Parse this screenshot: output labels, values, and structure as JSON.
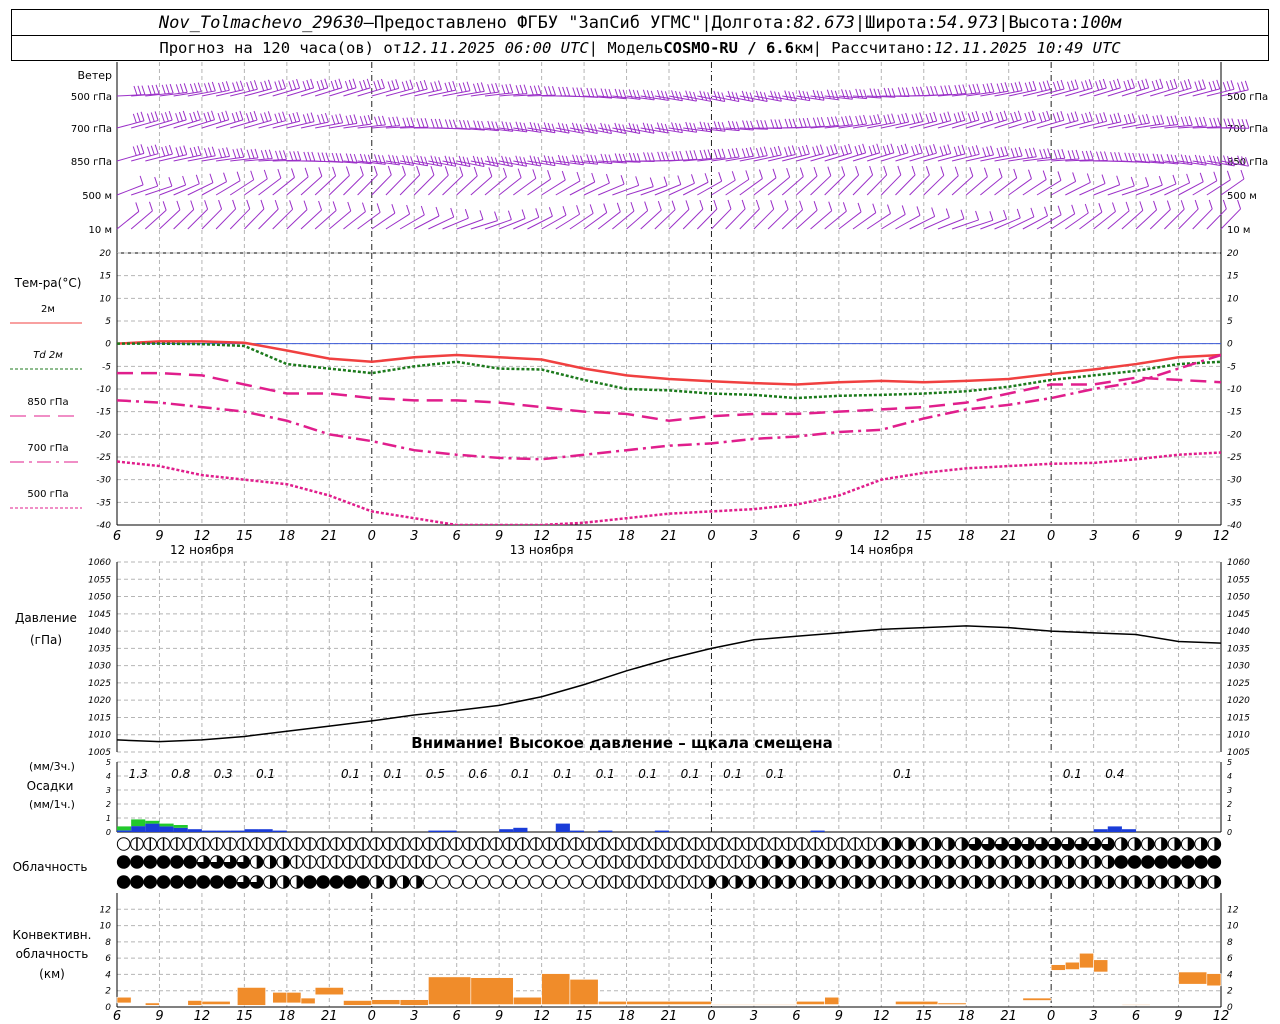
{
  "header": {
    "line1": {
      "station": "Nov_Tolmachevo_29630",
      "sep1": " – ",
      "provider": "Предоставлено ФГБУ \"ЗапСиб УГМС\"",
      "sep2": " | ",
      "lon_label": "Долгота: ",
      "lon_value": "82.673",
      "sep3": " | ",
      "lat_label": "Широта: ",
      "lat_value": "54.973",
      "sep4": " | ",
      "alt_label": "Высота: ",
      "alt_value": "100м"
    },
    "line2": {
      "forecast_label": "Прогноз на 120 часа(ов) от ",
      "forecast_time": "12.11.2025 06:00 UTC",
      "model_label": "  | Модель ",
      "model_name": "COSMO-RU / 6.6",
      "model_unit": "км",
      "calc_label": " | Рассчитано: ",
      "calc_time": "12.11.2025 10:49 UTC"
    }
  },
  "chart_data": [
    {
      "type": "wind-barbs",
      "title": "Ветер",
      "levels": [
        "500 гПа",
        "700 гПа",
        "850 гПа",
        "500 м",
        "10  м"
      ],
      "color": "#9b30c8",
      "x_ticks": [
        "6",
        "9",
        "12",
        "15",
        "18",
        "21",
        "0",
        "3",
        "6",
        "9",
        "12",
        "15",
        "18",
        "21",
        "0",
        "3",
        "6",
        "9",
        "12",
        "15",
        "18",
        "21",
        "0",
        "3",
        "6",
        "9",
        "12"
      ]
    },
    {
      "type": "line",
      "ylabel": "Тем-ра(°C)",
      "ylim": [
        -40,
        20
      ],
      "yticks": [
        20,
        15,
        10,
        5,
        0,
        -5,
        -10,
        -15,
        -20,
        -25,
        -30,
        -35,
        -40
      ],
      "x_ticks": [
        "6",
        "9",
        "12",
        "15",
        "18",
        "21",
        "0",
        "3",
        "6",
        "9",
        "12",
        "15",
        "18",
        "21",
        "0",
        "3",
        "6",
        "9",
        "12",
        "15",
        "18",
        "21",
        "0",
        "3",
        "6",
        "9",
        "12"
      ],
      "day_labels": [
        "12 ноября",
        "13 ноября",
        "14 ноября"
      ],
      "hours": [
        0,
        3,
        6,
        9,
        12,
        15,
        18,
        21,
        24,
        27,
        30,
        33,
        36,
        39,
        42,
        45,
        48,
        51,
        54,
        57,
        60,
        63,
        66,
        69,
        72,
        75,
        78
      ],
      "series": [
        {
          "name": "2м",
          "color": "#f04040",
          "dash": "solid",
          "values": [
            0,
            0.5,
            0.5,
            0.2,
            -1.5,
            -3.3,
            -4,
            -3,
            -2.5,
            -3,
            -3.5,
            -5.5,
            -7,
            -7.8,
            -8.3,
            -8.7,
            -9,
            -8.5,
            -8.2,
            -8.5,
            -8.2,
            -7.8,
            -6.7,
            -5.7,
            -4.5,
            -3,
            -2.5
          ]
        },
        {
          "name": "Td  2м",
          "color": "#1c7a1c",
          "dash": "dotted",
          "values": [
            0,
            0,
            -0.1,
            -0.5,
            -4.5,
            -5.5,
            -6.5,
            -5,
            -4,
            -5.5,
            -5.7,
            -8,
            -10,
            -10.3,
            -11,
            -11.3,
            -12,
            -11.5,
            -11.3,
            -11,
            -10.5,
            -9.5,
            -8,
            -7,
            -6,
            -4.5,
            -4
          ]
        },
        {
          "name": "850 гПа",
          "color": "#e01e8c",
          "dash": "long-dash",
          "values": [
            -6.5,
            -6.5,
            -7,
            -9,
            -11,
            -11,
            -12,
            -12.5,
            -12.5,
            -13,
            -14,
            -15,
            -15.5,
            -17,
            -16,
            -15.5,
            -15.5,
            -15,
            -14.5,
            -14,
            -13,
            -11,
            -9,
            -9,
            -7.5,
            -8,
            -8.5
          ]
        },
        {
          "name": "700 гПа",
          "color": "#e01e8c",
          "dash": "dash-dot",
          "values": [
            -12.5,
            -13,
            -14,
            -15,
            -17,
            -20,
            -21.5,
            -23.5,
            -24.5,
            -25.2,
            -25.5,
            -24.5,
            -23.5,
            -22.5,
            -22,
            -21,
            -20.5,
            -19.5,
            -19,
            -16.5,
            -14.5,
            -13.5,
            -12,
            -10,
            -8.5,
            -5.5,
            -2.5
          ]
        },
        {
          "name": "500 гПа",
          "color": "#e01e8c",
          "dash": "dotted",
          "values": [
            -26,
            -27,
            -29,
            -30,
            -31,
            -33.5,
            -37,
            -38.5,
            -40.5,
            -42,
            -41,
            -39.5,
            -38.5,
            -37.5,
            -37,
            -36.5,
            -35.5,
            -33.5,
            -30,
            -28.5,
            -27.5,
            -27,
            -26.5,
            -26.3,
            -25.5,
            -24.5,
            -24
          ]
        }
      ]
    },
    {
      "type": "line",
      "ylabel": "Давление",
      "yunit": "(гПа)",
      "ylim": [
        1005,
        1060
      ],
      "yticks": [
        1060,
        1055,
        1050,
        1045,
        1040,
        1035,
        1030,
        1025,
        1020,
        1015,
        1010,
        1005
      ],
      "notice": "Внимание! Высокое давление – щкала смещена",
      "hours": [
        0,
        3,
        6,
        9,
        12,
        15,
        18,
        21,
        24,
        27,
        30,
        33,
        36,
        39,
        42,
        45,
        48,
        51,
        54,
        57,
        60,
        63,
        66,
        69,
        72,
        75,
        78
      ],
      "series": [
        {
          "name": "Давление",
          "color": "#000000",
          "values": [
            1008.5,
            1008,
            1008.5,
            1009.5,
            1011,
            1012.5,
            1014,
            1015.7,
            1017,
            1018.5,
            1021,
            1024.5,
            1028.5,
            1032,
            1035,
            1037.5,
            1038.5,
            1039.5,
            1040.5,
            1041,
            1041.5,
            1041,
            1040,
            1039.5,
            1039,
            1037,
            1036.5
          ]
        }
      ]
    },
    {
      "type": "bar",
      "ylabel": "Осадки",
      "yunit_3h": "(мм/3ч.)",
      "yunit_1h": "(мм/1ч.)",
      "ylim": [
        0,
        5
      ],
      "yticks": [
        5,
        4,
        3,
        2,
        1,
        0
      ],
      "totals_3h": [
        {
          "hour": 1.5,
          "label": "1.3"
        },
        {
          "hour": 4.5,
          "label": "0.8"
        },
        {
          "hour": 7.5,
          "label": "0.3"
        },
        {
          "hour": 10.5,
          "label": "0.1"
        },
        {
          "hour": 16.5,
          "label": "0.1"
        },
        {
          "hour": 19.5,
          "label": "0.1"
        },
        {
          "hour": 22.5,
          "label": "0.5"
        },
        {
          "hour": 25.5,
          "label": "0.6"
        },
        {
          "hour": 28.5,
          "label": "0.1"
        },
        {
          "hour": 31.5,
          "label": "0.1"
        },
        {
          "hour": 34.5,
          "label": "0.1"
        },
        {
          "hour": 37.5,
          "label": "0.1"
        },
        {
          "hour": 40.5,
          "label": "0.1"
        },
        {
          "hour": 43.5,
          "label": "0.1"
        },
        {
          "hour": 46.5,
          "label": "0.1"
        },
        {
          "hour": 55.5,
          "label": "0.1"
        },
        {
          "hour": 67.5,
          "label": "0.1"
        },
        {
          "hour": 70.5,
          "label": "0.4"
        }
      ],
      "hourly_mm": [
        0.2,
        0.7,
        0.6,
        0.4,
        0.3,
        0.2,
        0.1,
        0.1,
        0.1,
        0.2,
        0.2,
        0.1,
        0,
        0,
        0,
        0,
        0,
        0,
        0,
        0,
        0,
        0,
        0.1,
        0.1,
        0,
        0,
        0,
        0.2,
        0.3,
        0,
        0,
        0.6,
        0.1,
        0,
        0.1,
        0,
        0,
        0,
        0.1,
        0,
        0,
        0,
        0,
        0,
        0,
        0,
        0,
        0,
        0,
        0.1,
        0,
        0,
        0,
        0,
        0,
        0,
        0,
        0,
        0,
        0,
        0,
        0,
        0,
        0,
        0,
        0,
        0,
        0,
        0,
        0.2,
        0.4,
        0.2,
        0,
        0,
        0,
        0,
        0,
        0
      ],
      "colors": {
        "snow": "#1a3cd8",
        "rain": "#22c92c"
      }
    },
    {
      "type": "table",
      "ylabel": "Облачность",
      "rows": [
        "01111111111111111111111111111111111111111111111111111111122222223333333333322222222",
        "44444433332221111111111100000000000011111111111122222222222222222222222222244444444",
        "44444444433222444442222000000000000011111111222222222222222222222222222222222222222"
      ]
    },
    {
      "type": "bar",
      "ylabel": "Конвективн.",
      "ylabel2": "облачность",
      "yunit": "(км)",
      "ylim": [
        0,
        14
      ],
      "yticks": [
        12,
        10,
        8,
        6,
        4,
        2,
        0
      ],
      "color": "#f08c2a",
      "bars": [
        {
          "start": 0,
          "end": 1,
          "bottom": 0.5,
          "top": 1.2
        },
        {
          "start": 2,
          "end": 3,
          "bottom": 0.2,
          "top": 0.5
        },
        {
          "start": 5,
          "end": 6,
          "bottom": 0.2,
          "top": 0.8
        },
        {
          "start": 6,
          "end": 8,
          "bottom": 0.3,
          "top": 0.7
        },
        {
          "start": 8.5,
          "end": 10.5,
          "bottom": 0.2,
          "top": 2.4
        },
        {
          "start": 11,
          "end": 12,
          "bottom": 0.5,
          "top": 1.8
        },
        {
          "start": 12,
          "end": 13,
          "bottom": 0.5,
          "top": 1.8
        },
        {
          "start": 13,
          "end": 14,
          "bottom": 0.4,
          "top": 1.1
        },
        {
          "start": 14,
          "end": 16,
          "bottom": 1.5,
          "top": 2.4
        },
        {
          "start": 16,
          "end": 18,
          "bottom": 0.2,
          "top": 0.8
        },
        {
          "start": 18,
          "end": 20,
          "bottom": 0.3,
          "top": 0.9
        },
        {
          "start": 20,
          "end": 22,
          "bottom": 0.2,
          "top": 0.9
        },
        {
          "start": 22,
          "end": 25,
          "bottom": 0.3,
          "top": 3.7
        },
        {
          "start": 25,
          "end": 28,
          "bottom": 0.3,
          "top": 3.6
        },
        {
          "start": 28,
          "end": 30,
          "bottom": 0.3,
          "top": 1.2
        },
        {
          "start": 30,
          "end": 32,
          "bottom": 0.3,
          "top": 4.1
        },
        {
          "start": 32,
          "end": 34,
          "bottom": 0.3,
          "top": 3.4
        },
        {
          "start": 34,
          "end": 36,
          "bottom": 0.3,
          "top": 0.7
        },
        {
          "start": 36,
          "end": 42,
          "bottom": 0.3,
          "top": 0.7
        },
        {
          "start": 42,
          "end": 48,
          "bottom": 0.2,
          "top": 0.3
        },
        {
          "start": 48,
          "end": 50,
          "bottom": 0.3,
          "top": 0.7
        },
        {
          "start": 50,
          "end": 51,
          "bottom": 0.3,
          "top": 1.2
        },
        {
          "start": 55,
          "end": 58,
          "bottom": 0.3,
          "top": 0.7
        },
        {
          "start": 58,
          "end": 60,
          "bottom": 0.3,
          "top": 0.5
        },
        {
          "start": 64,
          "end": 66,
          "bottom": 0.8,
          "top": 1.1
        },
        {
          "start": 66,
          "end": 67,
          "bottom": 4.5,
          "top": 5.2
        },
        {
          "start": 67,
          "end": 68,
          "bottom": 4.6,
          "top": 5.5
        },
        {
          "start": 68,
          "end": 69,
          "bottom": 4.8,
          "top": 6.6
        },
        {
          "start": 69,
          "end": 70,
          "bottom": 4.3,
          "top": 5.8
        },
        {
          "start": 71,
          "end": 73,
          "bottom": 0.2,
          "top": 0.3
        },
        {
          "start": 75,
          "end": 77,
          "bottom": 2.8,
          "top": 4.3
        },
        {
          "start": 77,
          "end": 78,
          "bottom": 2.6,
          "top": 4.1
        }
      ]
    }
  ]
}
